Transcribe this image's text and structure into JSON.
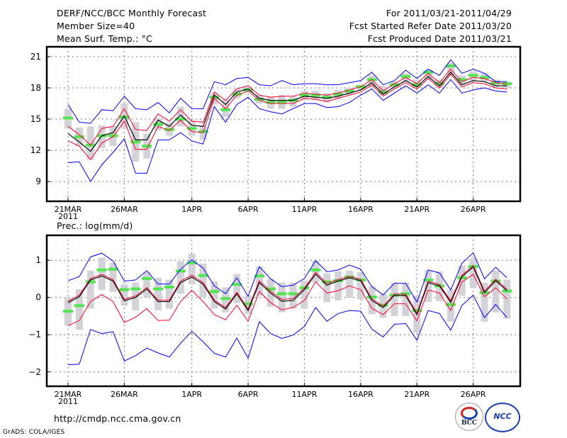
{
  "header": {
    "title": "DERF/NCC/BCC Monthly Forecast",
    "member_size": "Member Size=40",
    "variable": "Mean Surf. Temp.: °C",
    "forecast_period": "For 2011/03/21-2011/04/29",
    "start_date": "Fcst Started Refer Date 2011/03/20",
    "produced_date": "Fcst Produced Date 2011/03/21"
  },
  "footer": {
    "url": "http://cmdp.ncc.cma.gov.cn",
    "credit": "GrADS: COLA/IGES",
    "logo_bcc": "BCC",
    "logo_ncc": "NCC"
  },
  "colors": {
    "max_min": "#0000ff",
    "spread": "#ff0030",
    "mean": "#000000",
    "obs": "#50e650",
    "box": "#d2d2d8"
  },
  "chart_data": [
    {
      "type": "line",
      "title": "Mean Surf. Temp.: °C",
      "xlabel": "",
      "ylabel": "Mean Surf. Temp.: °C",
      "ylim": [
        7.1,
        21.95
      ],
      "yticks": [
        9,
        12,
        15,
        18,
        21
      ],
      "xticks": [
        {
          "i": 0,
          "label": "21MAR"
        },
        {
          "i": 5,
          "label": "26MAR"
        },
        {
          "i": 11,
          "label": "1APR"
        },
        {
          "i": 16,
          "label": "6APR"
        },
        {
          "i": 21,
          "label": "11APR"
        },
        {
          "i": 26,
          "label": "16APR"
        },
        {
          "i": 31,
          "label": "21APR"
        },
        {
          "i": 36,
          "label": "26APR"
        }
      ],
      "year_label": "2011",
      "grid": true,
      "n_days": 40,
      "series": {
        "mean": [
          13.6,
          12.8,
          11.9,
          13.4,
          13.7,
          15.3,
          13.0,
          13.0,
          14.9,
          14.3,
          15.4,
          14.4,
          14.3,
          17.3,
          16.4,
          17.6,
          17.9,
          17.0,
          16.8,
          16.8,
          16.8,
          17.2,
          17.1,
          17.0,
          17.2,
          17.5,
          17.8,
          18.5,
          17.4,
          18.1,
          18.7,
          18.1,
          19.1,
          18.2,
          19.5,
          18.3,
          18.7,
          18.6,
          18.2,
          18.2
        ],
        "spread_upper": [
          14.3,
          13.5,
          12.5,
          14.1,
          14.3,
          16.0,
          14.0,
          13.9,
          15.5,
          14.8,
          15.9,
          14.8,
          14.7,
          17.6,
          16.8,
          17.9,
          18.2,
          17.3,
          17.1,
          17.2,
          17.2,
          17.5,
          17.4,
          17.3,
          17.5,
          17.8,
          18.1,
          18.8,
          17.7,
          18.4,
          19.0,
          18.4,
          19.4,
          18.5,
          19.8,
          18.6,
          19.0,
          18.9,
          18.5,
          18.4
        ],
        "spread_lower": [
          12.9,
          12.4,
          11.1,
          12.7,
          13.3,
          14.8,
          12.1,
          12.1,
          14.3,
          13.9,
          14.9,
          13.8,
          13.7,
          17.0,
          16.0,
          17.3,
          17.7,
          16.8,
          16.5,
          16.5,
          16.5,
          17.0,
          16.9,
          16.7,
          17.0,
          17.3,
          17.6,
          18.3,
          17.2,
          17.9,
          18.5,
          17.9,
          18.9,
          18.0,
          19.3,
          18.1,
          18.5,
          18.4,
          18.0,
          17.9
        ],
        "max": [
          16.4,
          14.7,
          14.6,
          15.9,
          15.8,
          17.2,
          16.0,
          15.9,
          16.6,
          15.6,
          17.0,
          16.0,
          16.0,
          18.6,
          18.3,
          18.9,
          19.0,
          18.3,
          18.2,
          18.7,
          18.3,
          18.4,
          18.4,
          18.3,
          18.3,
          18.5,
          18.7,
          19.5,
          18.3,
          18.7,
          19.7,
          18.9,
          19.8,
          19.2,
          20.7,
          19.4,
          19.8,
          19.4,
          18.6,
          18.6
        ],
        "min": [
          10.8,
          10.9,
          9.0,
          10.6,
          11.8,
          13.1,
          9.8,
          9.8,
          13.0,
          13.0,
          13.7,
          12.9,
          12.6,
          16.2,
          14.7,
          16.4,
          17.1,
          16.0,
          15.7,
          15.5,
          16.0,
          16.5,
          16.5,
          16.1,
          16.2,
          16.6,
          17.3,
          17.9,
          16.8,
          17.5,
          18.2,
          17.5,
          18.3,
          17.5,
          18.8,
          17.5,
          17.8,
          18.0,
          17.7,
          17.6
        ],
        "obs": [
          15.1,
          13.3,
          12.5,
          13.4,
          13.4,
          15.2,
          12.8,
          12.4,
          14.5,
          14.0,
          15.0,
          14.1,
          13.8,
          17.1,
          15.9,
          17.4,
          17.8,
          16.9,
          16.6,
          16.6,
          16.8,
          17.3,
          17.3,
          17.1,
          17.4,
          17.7,
          18.1,
          18.8,
          17.6,
          18.3,
          19.1,
          18.3,
          19.5,
          18.4,
          20.1,
          18.8,
          19.2,
          19.0,
          18.5,
          18.4
        ],
        "box_low": [
          14.1,
          12.4,
          11.1,
          12.2,
          12.4,
          14.1,
          10.9,
          11.2,
          13.9,
          13.4,
          14.3,
          13.4,
          13.0,
          16.4,
          15.2,
          17.0,
          17.6,
          16.5,
          16.0,
          16.0,
          16.2,
          16.8,
          16.8,
          16.6,
          16.9,
          17.3,
          17.8,
          18.0,
          17.3,
          17.9,
          18.6,
          18.0,
          18.8,
          18.0,
          19.2,
          18.4,
          18.7,
          18.6,
          18.1,
          18.0
        ],
        "box_high": [
          16.0,
          14.2,
          14.3,
          14.4,
          14.3,
          16.5,
          14.7,
          13.6,
          15.1,
          14.7,
          16.2,
          14.9,
          14.4,
          17.5,
          16.9,
          17.9,
          18.1,
          17.3,
          17.2,
          17.3,
          17.2,
          17.7,
          17.7,
          17.5,
          17.8,
          18.0,
          18.3,
          19.2,
          18.2,
          18.6,
          19.4,
          18.8,
          19.8,
          18.8,
          20.4,
          19.2,
          19.6,
          19.4,
          18.8,
          18.6
        ]
      }
    },
    {
      "type": "line",
      "title": "Prec.: log(mm/d)",
      "xlabel": "",
      "ylabel": "Prec.: log(mm/d)",
      "ylim": [
        -2.385,
        1.67
      ],
      "yticks": [
        -2,
        -1,
        0,
        1
      ],
      "xticks": [
        {
          "i": 0,
          "label": "21MAR"
        },
        {
          "i": 5,
          "label": "26MAR"
        },
        {
          "i": 11,
          "label": "1APR"
        },
        {
          "i": 16,
          "label": "6APR"
        },
        {
          "i": 21,
          "label": "11APR"
        },
        {
          "i": 26,
          "label": "16APR"
        },
        {
          "i": 31,
          "label": "21APR"
        },
        {
          "i": 36,
          "label": "26APR"
        }
      ],
      "year_label": "2011",
      "grid": true,
      "n_days": 40,
      "series": {
        "mean": [
          -0.14,
          0.02,
          0.47,
          0.58,
          0.44,
          -0.09,
          0.0,
          0.23,
          -0.11,
          -0.11,
          0.4,
          0.55,
          0.36,
          -0.11,
          -0.31,
          0.1,
          -0.35,
          0.4,
          0.12,
          -0.1,
          -0.08,
          0.21,
          0.63,
          0.33,
          0.44,
          0.53,
          0.45,
          -0.08,
          -0.27,
          0.06,
          0.05,
          -0.46,
          0.4,
          0.31,
          -0.13,
          0.56,
          0.82,
          0.13,
          0.45,
          0.18
        ],
        "spread_upper": [
          -0.1,
          0.06,
          0.51,
          0.62,
          0.48,
          -0.05,
          0.04,
          0.27,
          -0.07,
          -0.07,
          0.44,
          0.6,
          0.4,
          -0.07,
          -0.27,
          0.14,
          -0.31,
          0.45,
          0.17,
          -0.05,
          -0.03,
          0.25,
          0.68,
          0.38,
          0.48,
          0.57,
          0.49,
          -0.04,
          -0.23,
          0.1,
          0.09,
          -0.42,
          0.44,
          0.35,
          -0.09,
          0.6,
          0.86,
          0.17,
          0.49,
          0.22
        ],
        "spread_lower": [
          -0.76,
          -0.62,
          -0.11,
          0.08,
          -0.11,
          -0.67,
          -0.53,
          -0.3,
          -0.62,
          -0.61,
          -0.11,
          0.19,
          -0.11,
          -0.46,
          -0.6,
          -0.21,
          -0.64,
          0.16,
          -0.14,
          -0.33,
          -0.27,
          -0.08,
          0.42,
          0.12,
          0.18,
          0.31,
          0.21,
          -0.29,
          -0.46,
          -0.17,
          -0.17,
          -0.63,
          0.2,
          0.12,
          -0.35,
          0.42,
          0.62,
          0.02,
          0.26,
          -0.04
        ],
        "max": [
          0.45,
          0.56,
          1.09,
          1.19,
          0.98,
          0.44,
          0.47,
          0.72,
          0.36,
          0.36,
          0.76,
          1.01,
          0.79,
          0.31,
          0.1,
          0.53,
          0.03,
          0.83,
          0.5,
          0.29,
          0.33,
          0.51,
          0.99,
          0.69,
          0.74,
          0.87,
          0.76,
          0.29,
          0.07,
          0.38,
          0.38,
          -0.12,
          0.74,
          0.66,
          0.2,
          0.92,
          1.2,
          0.5,
          0.81,
          0.53
        ],
        "min": [
          -1.81,
          -1.79,
          -0.86,
          -0.97,
          -0.92,
          -1.71,
          -1.56,
          -1.36,
          -1.49,
          -1.6,
          -1.23,
          -0.91,
          -1.19,
          -1.5,
          -1.6,
          -1.09,
          -1.63,
          -0.65,
          -0.97,
          -1.1,
          -1.01,
          -0.78,
          -0.27,
          -0.64,
          -0.43,
          -0.35,
          -0.37,
          -0.85,
          -1.06,
          -0.72,
          -0.7,
          -1.15,
          -0.35,
          -0.43,
          -0.88,
          -0.21,
          0.06,
          -0.54,
          -0.19,
          -0.54
        ],
        "obs": [
          -0.37,
          -0.22,
          0.42,
          0.74,
          0.76,
          0.21,
          0.23,
          0.51,
          0.23,
          0.28,
          0.71,
          0.93,
          0.59,
          0.16,
          -0.03,
          0.35,
          -0.17,
          0.58,
          0.23,
          0.1,
          0.1,
          0.26,
          0.74,
          0.42,
          0.45,
          0.55,
          0.47,
          0.01,
          -0.21,
          0.06,
          0.1,
          -0.35,
          0.47,
          0.31,
          -0.19,
          0.53,
          0.83,
          0.13,
          0.44,
          0.17
        ],
        "box_low": [
          -0.76,
          -0.87,
          -0.3,
          0.2,
          0.15,
          -0.22,
          -0.35,
          0.0,
          -0.35,
          -0.3,
          0.1,
          0.35,
          0.0,
          -0.3,
          -0.4,
          -0.15,
          -0.45,
          0.05,
          -0.25,
          -0.4,
          -0.3,
          -0.3,
          0.4,
          -0.13,
          -0.08,
          0.0,
          -0.05,
          -0.45,
          -0.55,
          -0.5,
          -0.5,
          -0.95,
          -0.12,
          -0.1,
          -0.65,
          0.05,
          0.25,
          -0.65,
          -0.4,
          -0.57
        ],
        "box_high": [
          0.0,
          0.22,
          0.72,
          1.07,
          0.93,
          0.35,
          0.4,
          0.68,
          0.53,
          0.48,
          0.97,
          1.18,
          0.91,
          0.43,
          0.27,
          0.63,
          0.05,
          0.82,
          0.5,
          0.4,
          0.4,
          0.45,
          0.98,
          0.65,
          0.7,
          0.72,
          0.68,
          0.3,
          0.1,
          0.4,
          0.4,
          0.05,
          0.73,
          0.7,
          0.2,
          0.85,
          1.05,
          0.4,
          0.72,
          0.48
        ]
      }
    }
  ]
}
